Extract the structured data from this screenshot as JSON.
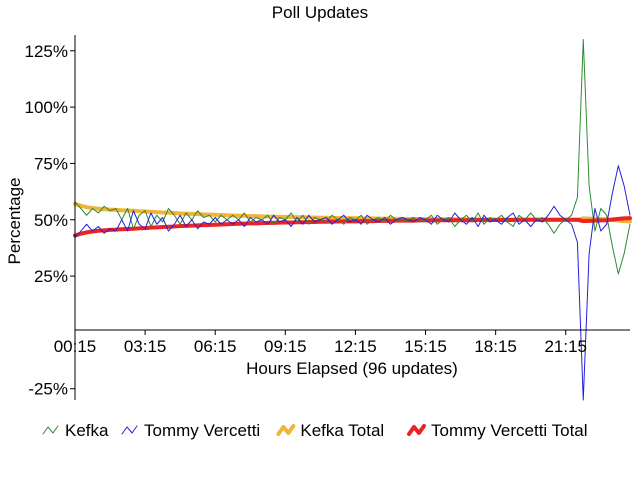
{
  "chart_data": {
    "type": "line",
    "title": "Poll Updates",
    "xlabel": "Hours Elapsed (96 updates)",
    "ylabel": "Percentage",
    "xlim": [
      0,
      95
    ],
    "ylim": [
      -0.3,
      1.32
    ],
    "y_ticks": [
      {
        "value": -0.25,
        "label": "-25%"
      },
      {
        "value": 0.25,
        "label": "25%"
      },
      {
        "value": 0.5,
        "label": "50%"
      },
      {
        "value": 0.75,
        "label": "75%"
      },
      {
        "value": 1.0,
        "label": "100%"
      },
      {
        "value": 1.25,
        "label": "125%"
      }
    ],
    "x_ticks": [
      {
        "value": 0,
        "label": "00:15"
      },
      {
        "value": 12,
        "label": "03:15"
      },
      {
        "value": 24,
        "label": "06:15"
      },
      {
        "value": 36,
        "label": "09:15"
      },
      {
        "value": 48,
        "label": "12:15"
      },
      {
        "value": 60,
        "label": "15:15"
      },
      {
        "value": 72,
        "label": "18:15"
      },
      {
        "value": 84,
        "label": "21:15"
      }
    ],
    "grid": false,
    "legend_position": "bottom",
    "series": [
      {
        "name": "Kefka",
        "color": "#2e8b2e",
        "style": "thin",
        "values": [
          0.58,
          0.55,
          0.52,
          0.55,
          0.53,
          0.56,
          0.54,
          0.55,
          0.5,
          0.55,
          0.46,
          0.52,
          0.54,
          0.47,
          0.52,
          0.49,
          0.55,
          0.52,
          0.48,
          0.53,
          0.5,
          0.54,
          0.51,
          0.52,
          0.49,
          0.52,
          0.5,
          0.52,
          0.5,
          0.53,
          0.49,
          0.51,
          0.5,
          0.52,
          0.48,
          0.51,
          0.5,
          0.53,
          0.49,
          0.52,
          0.48,
          0.51,
          0.5,
          0.49,
          0.52,
          0.5,
          0.48,
          0.51,
          0.5,
          0.52,
          0.48,
          0.5,
          0.51,
          0.49,
          0.52,
          0.5,
          0.49,
          0.5,
          0.51,
          0.49,
          0.5,
          0.52,
          0.48,
          0.5,
          0.51,
          0.47,
          0.5,
          0.52,
          0.49,
          0.53,
          0.48,
          0.51,
          0.5,
          0.52,
          0.49,
          0.47,
          0.52,
          0.5,
          0.53,
          0.5,
          0.51,
          0.48,
          0.44,
          0.48,
          0.5,
          0.52,
          0.6,
          1.3,
          0.65,
          0.45,
          0.55,
          0.52,
          0.38,
          0.26,
          0.35,
          0.48
        ]
      },
      {
        "name": "Tommy Vercetti",
        "color": "#2222dd",
        "style": "thin",
        "values": [
          0.42,
          0.45,
          0.48,
          0.45,
          0.47,
          0.44,
          0.46,
          0.45,
          0.5,
          0.45,
          0.54,
          0.48,
          0.46,
          0.53,
          0.48,
          0.51,
          0.45,
          0.48,
          0.52,
          0.47,
          0.5,
          0.46,
          0.49,
          0.48,
          0.51,
          0.48,
          0.5,
          0.48,
          0.5,
          0.47,
          0.51,
          0.49,
          0.5,
          0.48,
          0.52,
          0.49,
          0.5,
          0.47,
          0.51,
          0.48,
          0.52,
          0.49,
          0.5,
          0.51,
          0.48,
          0.5,
          0.52,
          0.49,
          0.5,
          0.48,
          0.52,
          0.5,
          0.49,
          0.51,
          0.48,
          0.5,
          0.51,
          0.5,
          0.49,
          0.51,
          0.5,
          0.48,
          0.52,
          0.5,
          0.49,
          0.53,
          0.5,
          0.48,
          0.51,
          0.47,
          0.52,
          0.49,
          0.5,
          0.48,
          0.51,
          0.53,
          0.48,
          0.5,
          0.47,
          0.5,
          0.49,
          0.52,
          0.56,
          0.52,
          0.5,
          0.48,
          0.4,
          -0.3,
          0.35,
          0.55,
          0.45,
          0.48,
          0.62,
          0.74,
          0.65,
          0.52
        ]
      },
      {
        "name": "Kefka Total",
        "color": "#f0b43c",
        "style": "thick",
        "values": [
          0.57,
          0.562,
          0.556,
          0.552,
          0.549,
          0.547,
          0.545,
          0.544,
          0.542,
          0.541,
          0.54,
          0.538,
          0.537,
          0.535,
          0.534,
          0.532,
          0.531,
          0.53,
          0.528,
          0.527,
          0.526,
          0.525,
          0.524,
          0.523,
          0.522,
          0.521,
          0.52,
          0.519,
          0.518,
          0.517,
          0.516,
          0.516,
          0.515,
          0.514,
          0.514,
          0.513,
          0.512,
          0.512,
          0.511,
          0.511,
          0.51,
          0.51,
          0.509,
          0.509,
          0.508,
          0.508,
          0.507,
          0.507,
          0.507,
          0.506,
          0.506,
          0.506,
          0.505,
          0.505,
          0.505,
          0.504,
          0.504,
          0.504,
          0.504,
          0.503,
          0.503,
          0.503,
          0.503,
          0.502,
          0.502,
          0.502,
          0.502,
          0.502,
          0.502,
          0.501,
          0.501,
          0.501,
          0.501,
          0.501,
          0.501,
          0.501,
          0.5,
          0.5,
          0.5,
          0.5,
          0.5,
          0.5,
          0.5,
          0.5,
          0.5,
          0.5,
          0.5,
          0.506,
          0.505,
          0.504,
          0.503,
          0.502,
          0.499,
          0.496,
          0.494,
          0.493
        ]
      },
      {
        "name": "Tommy Vercetti Total",
        "color": "#ee2222",
        "style": "thick",
        "values": [
          0.43,
          0.438,
          0.444,
          0.448,
          0.451,
          0.453,
          0.455,
          0.456,
          0.458,
          0.459,
          0.46,
          0.462,
          0.463,
          0.465,
          0.466,
          0.468,
          0.469,
          0.47,
          0.472,
          0.473,
          0.474,
          0.475,
          0.476,
          0.477,
          0.478,
          0.479,
          0.48,
          0.481,
          0.482,
          0.483,
          0.484,
          0.484,
          0.485,
          0.486,
          0.486,
          0.487,
          0.488,
          0.488,
          0.489,
          0.489,
          0.49,
          0.49,
          0.491,
          0.491,
          0.492,
          0.492,
          0.493,
          0.493,
          0.493,
          0.494,
          0.494,
          0.494,
          0.495,
          0.495,
          0.495,
          0.496,
          0.496,
          0.496,
          0.496,
          0.497,
          0.497,
          0.497,
          0.497,
          0.498,
          0.498,
          0.498,
          0.498,
          0.498,
          0.498,
          0.499,
          0.499,
          0.499,
          0.499,
          0.499,
          0.499,
          0.499,
          0.5,
          0.5,
          0.5,
          0.5,
          0.5,
          0.5,
          0.5,
          0.5,
          0.5,
          0.5,
          0.5,
          0.494,
          0.495,
          0.496,
          0.497,
          0.498,
          0.501,
          0.504,
          0.506,
          0.507
        ]
      }
    ]
  }
}
